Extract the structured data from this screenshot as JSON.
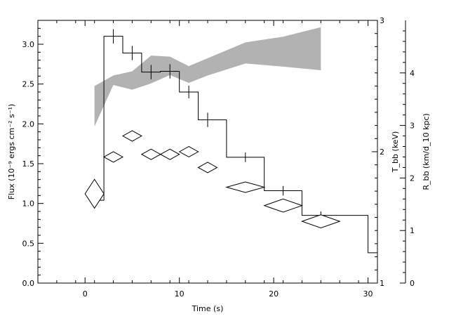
{
  "chart_data": {
    "type": "line",
    "xlabel": "Time (s)",
    "ylabel_left": "Flux (10⁻⁹ ergs cm⁻² s⁻¹)",
    "ylabel_right_inner": "T_bb (keV)",
    "ylabel_right_outer": "R_bb (km/d_10 kpc)",
    "xlim": [
      -5,
      31
    ],
    "ylim_left": [
      0,
      3.3
    ],
    "ylim_right_inner": [
      1,
      3
    ],
    "ylim_right_outer": [
      0,
      5
    ],
    "x_ticks": [
      0,
      10,
      20,
      30
    ],
    "y_left_ticks": [
      0.0,
      0.5,
      1.0,
      1.5,
      2.0,
      2.5,
      3.0
    ],
    "y_right_inner_ticks": [
      1,
      2,
      3
    ],
    "y_right_outer_ticks": [
      0,
      1,
      2,
      3,
      4
    ],
    "series": [
      {
        "style": "step-histogram",
        "description_axis": "left",
        "bins": [
          {
            "x0": 1,
            "x1": 2,
            "y": 1.04
          },
          {
            "x0": 2,
            "x1": 4,
            "y": 3.1
          },
          {
            "x0": 4,
            "x1": 6,
            "y": 2.89
          },
          {
            "x0": 6,
            "x1": 8,
            "y": 2.65
          },
          {
            "x0": 8,
            "x1": 10,
            "y": 2.66
          },
          {
            "x0": 10,
            "x1": 12,
            "y": 2.4
          },
          {
            "x0": 12,
            "x1": 15,
            "y": 2.05
          },
          {
            "x0": 15,
            "x1": 19,
            "y": 1.58
          },
          {
            "x0": 19,
            "x1": 23,
            "y": 1.16
          },
          {
            "x0": 23,
            "x1": 30,
            "y": 0.85
          },
          {
            "x0": 30,
            "x1": 31,
            "y": 0.38
          }
        ],
        "errorbars": [
          {
            "x": 1.0,
            "y": 1.04,
            "err": 0.07
          },
          {
            "x": 3.0,
            "y": 3.1,
            "err": 0.09
          },
          {
            "x": 5.0,
            "y": 2.89,
            "err": 0.09
          },
          {
            "x": 7.0,
            "y": 2.65,
            "err": 0.09
          },
          {
            "x": 9.0,
            "y": 2.66,
            "err": 0.09
          },
          {
            "x": 11.0,
            "y": 2.4,
            "err": 0.08
          },
          {
            "x": 13.0,
            "y": 2.05,
            "err": 0.09
          },
          {
            "x": 17.0,
            "y": 1.58,
            "err": 0.06
          },
          {
            "x": 21.0,
            "y": 1.16,
            "err": 0.06
          },
          {
            "x": 25.0,
            "y": 0.85,
            "err": 0.05
          }
        ]
      },
      {
        "style": "diamonds",
        "description_axis": "right-inner",
        "points": [
          {
            "x": 1,
            "y": 1.68,
            "hw": 1.0,
            "hh": 0.11
          },
          {
            "x": 3,
            "y": 1.96,
            "hw": 1.0,
            "hh": 0.04
          },
          {
            "x": 5,
            "y": 2.12,
            "hw": 1.0,
            "hh": 0.04
          },
          {
            "x": 7,
            "y": 1.98,
            "hw": 1.0,
            "hh": 0.04
          },
          {
            "x": 9,
            "y": 1.98,
            "hw": 1.0,
            "hh": 0.04
          },
          {
            "x": 11,
            "y": 2.0,
            "hw": 1.0,
            "hh": 0.04
          },
          {
            "x": 13,
            "y": 1.88,
            "hw": 1.0,
            "hh": 0.04
          },
          {
            "x": 17,
            "y": 1.73,
            "hw": 2.0,
            "hh": 0.04
          },
          {
            "x": 21,
            "y": 1.59,
            "hw": 2.0,
            "hh": 0.05
          },
          {
            "x": 25,
            "y": 1.47,
            "hw": 2.0,
            "hh": 0.05
          }
        ]
      },
      {
        "style": "band",
        "description_axis": "right-outer",
        "points": [
          {
            "x": 1,
            "lo": 2.98,
            "hi": 3.75
          },
          {
            "x": 3,
            "lo": 3.77,
            "hi": 3.95
          },
          {
            "x": 5,
            "lo": 3.68,
            "hi": 4.03
          },
          {
            "x": 7,
            "lo": 3.8,
            "hi": 4.33
          },
          {
            "x": 9,
            "lo": 3.96,
            "hi": 4.31
          },
          {
            "x": 11,
            "lo": 3.81,
            "hi": 4.13
          },
          {
            "x": 13,
            "lo": 3.95,
            "hi": 4.28
          },
          {
            "x": 17,
            "lo": 4.18,
            "hi": 4.58
          },
          {
            "x": 21,
            "lo": 4.12,
            "hi": 4.69
          },
          {
            "x": 25,
            "lo": 4.05,
            "hi": 4.87
          }
        ]
      }
    ],
    "colors": {
      "band": "#b2b2b2",
      "line": "#000000",
      "background": "#ffffff"
    }
  }
}
